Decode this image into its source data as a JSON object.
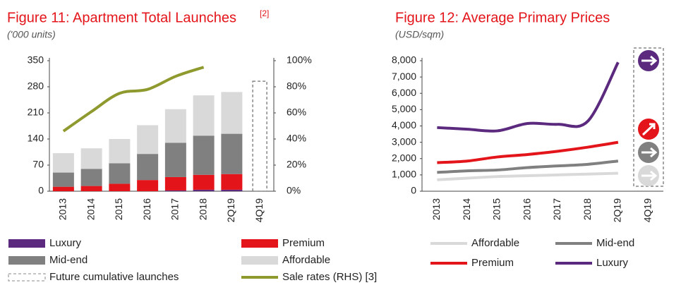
{
  "chart_data": [
    {
      "type": "bar",
      "stacked": true,
      "title": "Figure 11: Apartment Total Launches",
      "title_superscript": "[2]",
      "subtitle": "('000 units)",
      "categories": [
        "2013",
        "2014",
        "2015",
        "2016",
        "2017",
        "2018",
        "2Q19",
        "4Q19"
      ],
      "series": [
        {
          "name": "Luxury",
          "color": "#5b2a7e",
          "values": [
            0,
            0,
            0,
            0,
            2,
            4,
            4,
            null
          ]
        },
        {
          "name": "Premium",
          "color": "#e3151a",
          "values": [
            12,
            14,
            20,
            30,
            36,
            40,
            42,
            null
          ]
        },
        {
          "name": "Mid-end",
          "color": "#808080",
          "values": [
            38,
            46,
            55,
            70,
            92,
            105,
            108,
            null
          ]
        },
        {
          "name": "Affordable",
          "color": "#d9d9d9",
          "values": [
            52,
            55,
            65,
            77,
            90,
            108,
            112,
            null
          ]
        },
        {
          "name": "Future cumulative launches",
          "color": "#888888",
          "dashed": true,
          "values": [
            null,
            null,
            null,
            null,
            null,
            null,
            null,
            295
          ]
        },
        {
          "name": "Sale rates (RHS) [3]",
          "color": "#8f9a2e",
          "type": "line",
          "axis": "y2",
          "values": [
            46,
            61,
            75,
            78,
            88,
            95,
            null,
            null
          ]
        }
      ],
      "ylim": [
        0,
        350
      ],
      "yticks": [
        0,
        70,
        140,
        210,
        280,
        350
      ],
      "y2lim": [
        0,
        100
      ],
      "y2ticks": [
        {
          "value": 0,
          "label": "0%"
        },
        {
          "value": 20,
          "label": "20%"
        },
        {
          "value": 40,
          "label": "40%"
        },
        {
          "value": 60,
          "label": "60%"
        },
        {
          "value": 80,
          "label": "80%"
        },
        {
          "value": 100,
          "label": "100%"
        }
      ],
      "grid": false
    },
    {
      "type": "line",
      "title": "Figure 12:  Average Primary Prices",
      "subtitle": "(USD/sqm)",
      "categories": [
        "2013",
        "2014",
        "2015",
        "2016",
        "2017",
        "2018",
        "2Q19",
        "4Q19"
      ],
      "series": [
        {
          "name": "Affordable",
          "color": "#d9d9d9",
          "values": [
            700,
            800,
            900,
            950,
            1000,
            1050,
            1100,
            null
          ]
        },
        {
          "name": "Mid-end",
          "color": "#808080",
          "values": [
            1150,
            1250,
            1300,
            1450,
            1550,
            1650,
            1850,
            null
          ]
        },
        {
          "name": "Premium",
          "color": "#e3151a",
          "values": [
            1750,
            1850,
            2100,
            2250,
            2450,
            2700,
            3000,
            null
          ]
        },
        {
          "name": "Luxury",
          "color": "#5b2a7e",
          "values": [
            3900,
            3800,
            3700,
            4150,
            4100,
            4300,
            7900,
            null
          ]
        }
      ],
      "ylim": [
        0,
        8000
      ],
      "yticks": [
        0,
        {
          "value": 1000,
          "label": "1,000"
        },
        {
          "value": 2000,
          "label": "2,000"
        },
        {
          "value": 3000,
          "label": "3,000"
        },
        {
          "value": 4000,
          "label": "4,000"
        },
        {
          "value": 5000,
          "label": "5,000"
        },
        {
          "value": 6000,
          "label": "6,000"
        },
        {
          "value": 7000,
          "label": "7,000"
        },
        {
          "value": 8000,
          "label": "8,000"
        }
      ],
      "grid": false
    }
  ]
}
